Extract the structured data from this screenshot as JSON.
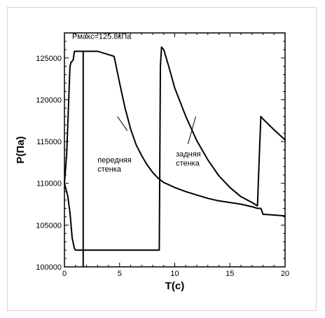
{
  "chart_data": {
    "type": "line",
    "title": "",
    "xlabel": "T(c)",
    "ylabel": "P(Па)",
    "xlim": [
      0,
      20
    ],
    "ylim": [
      100000,
      128000
    ],
    "xticks": [
      0,
      5,
      10,
      15,
      20
    ],
    "yticks": [
      100000,
      105000,
      110000,
      115000,
      120000,
      125000
    ],
    "grid": false,
    "series": [
      {
        "name": "передняя стенка",
        "x": [
          0,
          0.2,
          0.5,
          0.6,
          0.7,
          0.8,
          0.9,
          1.0,
          1.3,
          1.5,
          3.0,
          4.5,
          5.0,
          5.5,
          6.0,
          6.5,
          7.0,
          7.5,
          8.0,
          8.5,
          9.0,
          10.0,
          11.0,
          12.0,
          13.0,
          14.0,
          15.0,
          16.0,
          17.0,
          17.5,
          17.8,
          18.0,
          19.0,
          20.0
        ],
        "y": [
          110000,
          113500,
          124000,
          124500,
          124600,
          124800,
          125800,
          125800,
          125800,
          125800,
          125800,
          125200,
          122000,
          119000,
          116500,
          114600,
          113300,
          112200,
          111300,
          110600,
          110100,
          109500,
          109000,
          108600,
          108200,
          107900,
          107700,
          107500,
          107200,
          107000,
          107000,
          106300,
          106200,
          106100
        ]
      },
      {
        "name": "задняя стенка",
        "x": [
          0,
          0.3,
          0.5,
          0.7,
          0.9,
          1.0,
          1.5,
          3.0,
          5.0,
          7.0,
          8.6,
          8.7,
          8.8,
          9.0,
          9.5,
          10.0,
          11.0,
          12.0,
          13.0,
          14.0,
          15.0,
          16.0,
          17.0,
          17.5,
          17.6,
          17.8,
          18.0,
          19.0,
          20.0
        ],
        "y": [
          110000,
          108500,
          106500,
          103500,
          102200,
          102000,
          102000,
          102000,
          102000,
          102000,
          102000,
          124000,
          126300,
          126000,
          123800,
          121400,
          118000,
          115100,
          112800,
          110900,
          109500,
          108400,
          107700,
          107300,
          111000,
          118000,
          117700,
          116400,
          115200
        ]
      }
    ],
    "marker_line": {
      "x": 1.7,
      "label": "Pмакс=125.8кПа"
    },
    "annotations": [
      {
        "text": [
          "передняя",
          "стенка"
        ],
        "x": 3.0,
        "y": 112500,
        "pointer": [
          [
            4.8,
            118000
          ],
          [
            5.7,
            116300
          ]
        ]
      },
      {
        "text": [
          "задняя",
          "стенка"
        ],
        "x": 10.1,
        "y": 113200,
        "pointer": [
          [
            11.2,
            114700
          ],
          [
            11.9,
            118000
          ]
        ]
      }
    ],
    "colors": {
      "line": "#000000",
      "background": "#ffffff",
      "frame": "#d2d2d2"
    }
  }
}
